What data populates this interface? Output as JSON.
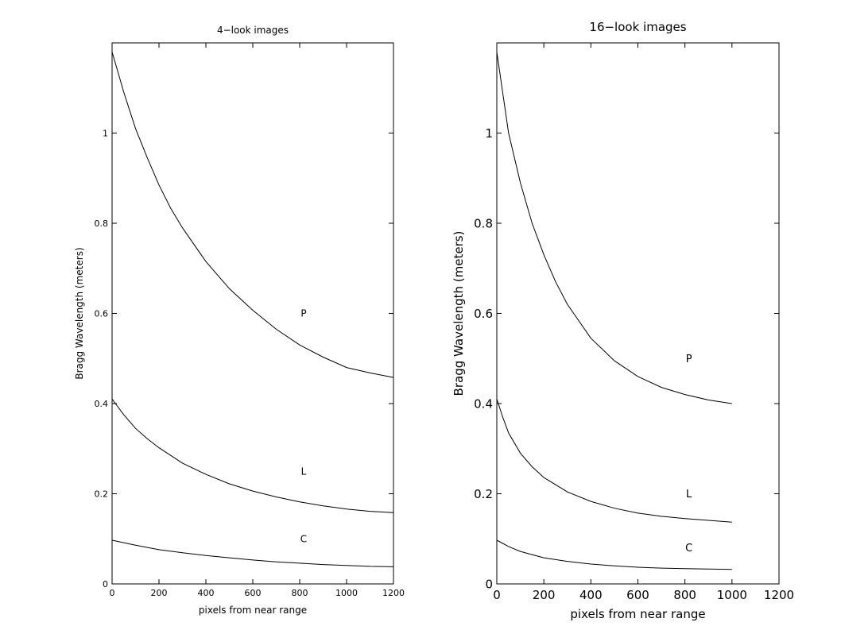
{
  "chart_data": [
    {
      "type": "line",
      "title": "4−look images",
      "xlabel": "pixels from near range",
      "ylabel": "Bragg Wavelength (meters)",
      "xlim": [
        0,
        1200
      ],
      "ylim": [
        0,
        1.2
      ],
      "xticks": [
        "0",
        "200",
        "400",
        "600",
        "800",
        "1000",
        "1200"
      ],
      "yticks": [
        "0",
        "0.2",
        "0.4",
        "0.6",
        "0.8",
        "1"
      ],
      "grid": false,
      "series": [
        {
          "name": "P",
          "label_x": 800,
          "label_y": 0.6,
          "x": [
            0,
            50,
            100,
            150,
            200,
            250,
            300,
            400,
            500,
            600,
            700,
            800,
            900,
            1000,
            1100,
            1200
          ],
          "y": [
            1.18,
            1.09,
            1.01,
            0.945,
            0.885,
            0.833,
            0.79,
            0.715,
            0.655,
            0.607,
            0.565,
            0.53,
            0.503,
            0.48,
            0.468,
            0.458
          ]
        },
        {
          "name": "L",
          "label_x": 800,
          "label_y": 0.25,
          "x": [
            0,
            50,
            100,
            150,
            200,
            300,
            400,
            500,
            600,
            700,
            800,
            900,
            1000,
            1100,
            1200
          ],
          "y": [
            0.41,
            0.375,
            0.345,
            0.322,
            0.302,
            0.268,
            0.243,
            0.222,
            0.206,
            0.193,
            0.182,
            0.173,
            0.166,
            0.161,
            0.158
          ]
        },
        {
          "name": "C",
          "label_x": 800,
          "label_y": 0.1,
          "x": [
            0,
            100,
            200,
            300,
            400,
            500,
            600,
            700,
            800,
            900,
            1000,
            1100,
            1200
          ],
          "y": [
            0.097,
            0.086,
            0.076,
            0.069,
            0.063,
            0.058,
            0.053,
            0.049,
            0.046,
            0.043,
            0.041,
            0.039,
            0.038
          ]
        }
      ]
    },
    {
      "type": "line",
      "title": "16−look images",
      "xlabel": "pixels from near range",
      "ylabel": "Bragg Wavelength (meters)",
      "xlim": [
        0,
        1200
      ],
      "ylim": [
        0,
        1.2
      ],
      "xticks": [
        "0",
        "200",
        "400",
        "600",
        "800",
        "1000",
        "1200"
      ],
      "yticks": [
        "0",
        "0.2",
        "0.4",
        "0.6",
        "0.8",
        "1"
      ],
      "grid": false,
      "series": [
        {
          "name": "P",
          "label_x": 800,
          "label_y": 0.5,
          "x": [
            0,
            25,
            50,
            100,
            150,
            200,
            250,
            300,
            400,
            500,
            600,
            700,
            800,
            900,
            1000
          ],
          "y": [
            1.18,
            1.09,
            1.0,
            0.89,
            0.8,
            0.73,
            0.67,
            0.62,
            0.545,
            0.495,
            0.46,
            0.436,
            0.42,
            0.408,
            0.4
          ]
        },
        {
          "name": "L",
          "label_x": 800,
          "label_y": 0.2,
          "x": [
            0,
            25,
            50,
            100,
            150,
            200,
            300,
            400,
            500,
            600,
            700,
            800,
            900,
            1000
          ],
          "y": [
            0.41,
            0.37,
            0.335,
            0.29,
            0.26,
            0.236,
            0.204,
            0.183,
            0.168,
            0.157,
            0.15,
            0.145,
            0.141,
            0.137
          ]
        },
        {
          "name": "C",
          "label_x": 800,
          "label_y": 0.08,
          "x": [
            0,
            50,
            100,
            200,
            300,
            400,
            500,
            600,
            700,
            800,
            900,
            1000
          ],
          "y": [
            0.097,
            0.083,
            0.072,
            0.058,
            0.05,
            0.044,
            0.04,
            0.037,
            0.035,
            0.034,
            0.033,
            0.032
          ]
        }
      ]
    }
  ]
}
